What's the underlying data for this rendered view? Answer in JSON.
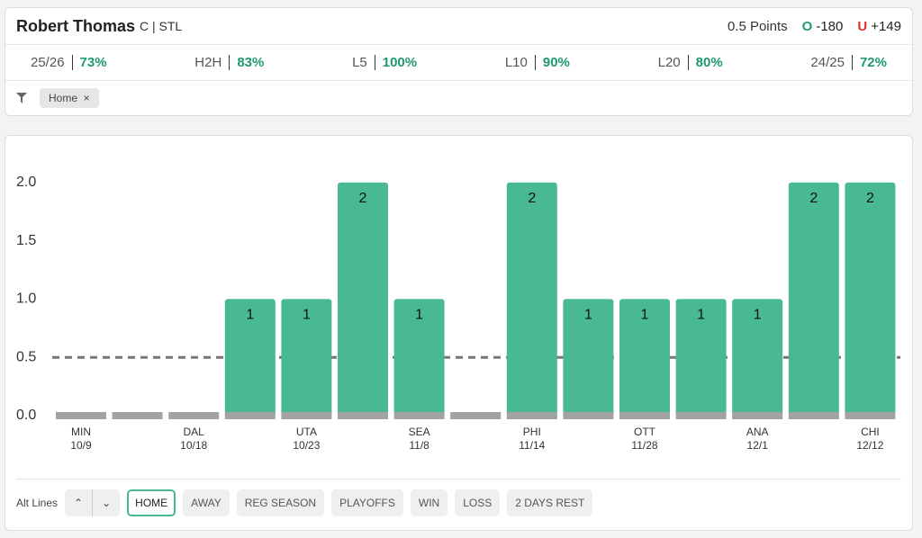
{
  "header": {
    "player": "Robert Thomas",
    "team": "C | STL",
    "line": "0.5 Points",
    "over_label": "O",
    "over_odds": "-180",
    "under_label": "U",
    "under_odds": "+149"
  },
  "stats": [
    {
      "label": "25/26",
      "value": "73%"
    },
    {
      "label": "H2H",
      "value": "83%"
    },
    {
      "label": "L5",
      "value": "100%"
    },
    {
      "label": "L10",
      "value": "90%"
    },
    {
      "label": "L20",
      "value": "80%"
    },
    {
      "label": "24/25",
      "value": "72%"
    }
  ],
  "filter": {
    "chip": "Home"
  },
  "chart_data": {
    "type": "bar",
    "categories": [
      "MIN",
      null,
      "DAL",
      null,
      "UTA",
      null,
      "SEA",
      null,
      "PHI",
      null,
      "OTT",
      null,
      "ANA",
      null,
      "CHI"
    ],
    "dates": [
      "10/9",
      null,
      "10/18",
      null,
      "10/23",
      null,
      "11/8",
      null,
      "11/14",
      null,
      "11/28",
      null,
      "12/1",
      null,
      "12/12"
    ],
    "values": [
      0,
      0,
      0,
      1,
      1,
      2,
      1,
      0,
      2,
      1,
      1,
      1,
      1,
      2,
      2
    ],
    "color": "#48b994",
    "reference_line": 0.5,
    "ylim": [
      0,
      2.3
    ],
    "yticks": [
      {
        "value": 0,
        "label": "0.0"
      },
      0.5,
      {
        "value": 1,
        "label": "1.0"
      },
      1.5,
      {
        "value": 2,
        "label": "2.0"
      }
    ],
    "grid": false
  },
  "controls": {
    "alt_lines": "Alt Lines",
    "buttons": [
      "HOME",
      "AWAY",
      "REG SEASON",
      "PLAYOFFS",
      "WIN",
      "LOSS",
      "2 DAYS REST"
    ],
    "selected": "HOME"
  }
}
